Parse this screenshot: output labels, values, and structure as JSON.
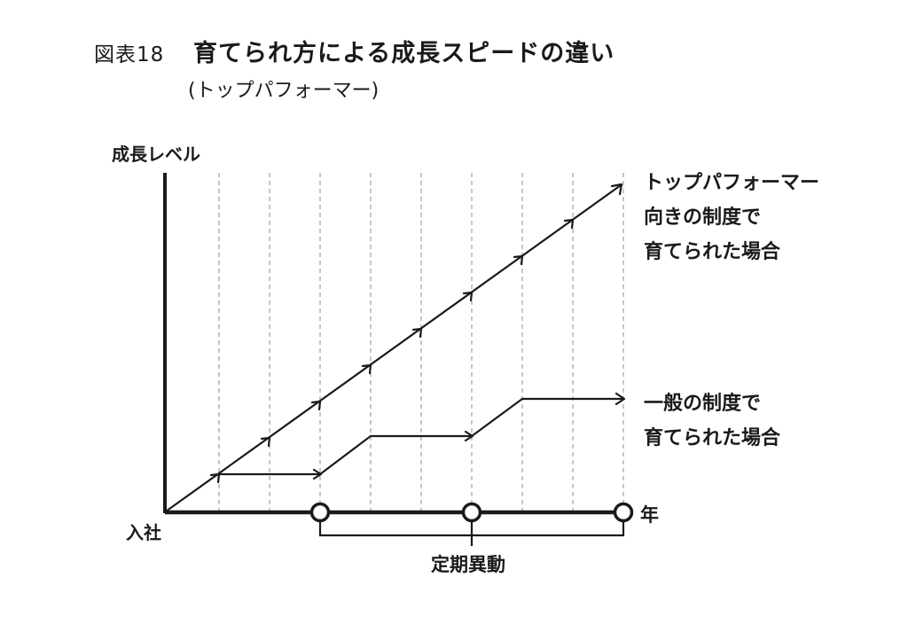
{
  "figure": {
    "label": "図表18",
    "title": "育てられ方による成長スピードの違い",
    "subtitle": "(トップパフォーマー)"
  },
  "axes": {
    "y_label": "成長レベル",
    "x_label": "年",
    "origin_label": "入社"
  },
  "bracket_label": "定期異動",
  "lines": {
    "top": {
      "label_lines": [
        "トップパフォーマー",
        "向きの制度で",
        "育てられた場合"
      ]
    },
    "general": {
      "label_lines": [
        "一般の制度で",
        "育てられた場合"
      ]
    }
  },
  "colors": {
    "ink": "#1a1a1a",
    "grid": "#9a9a9a"
  }
}
